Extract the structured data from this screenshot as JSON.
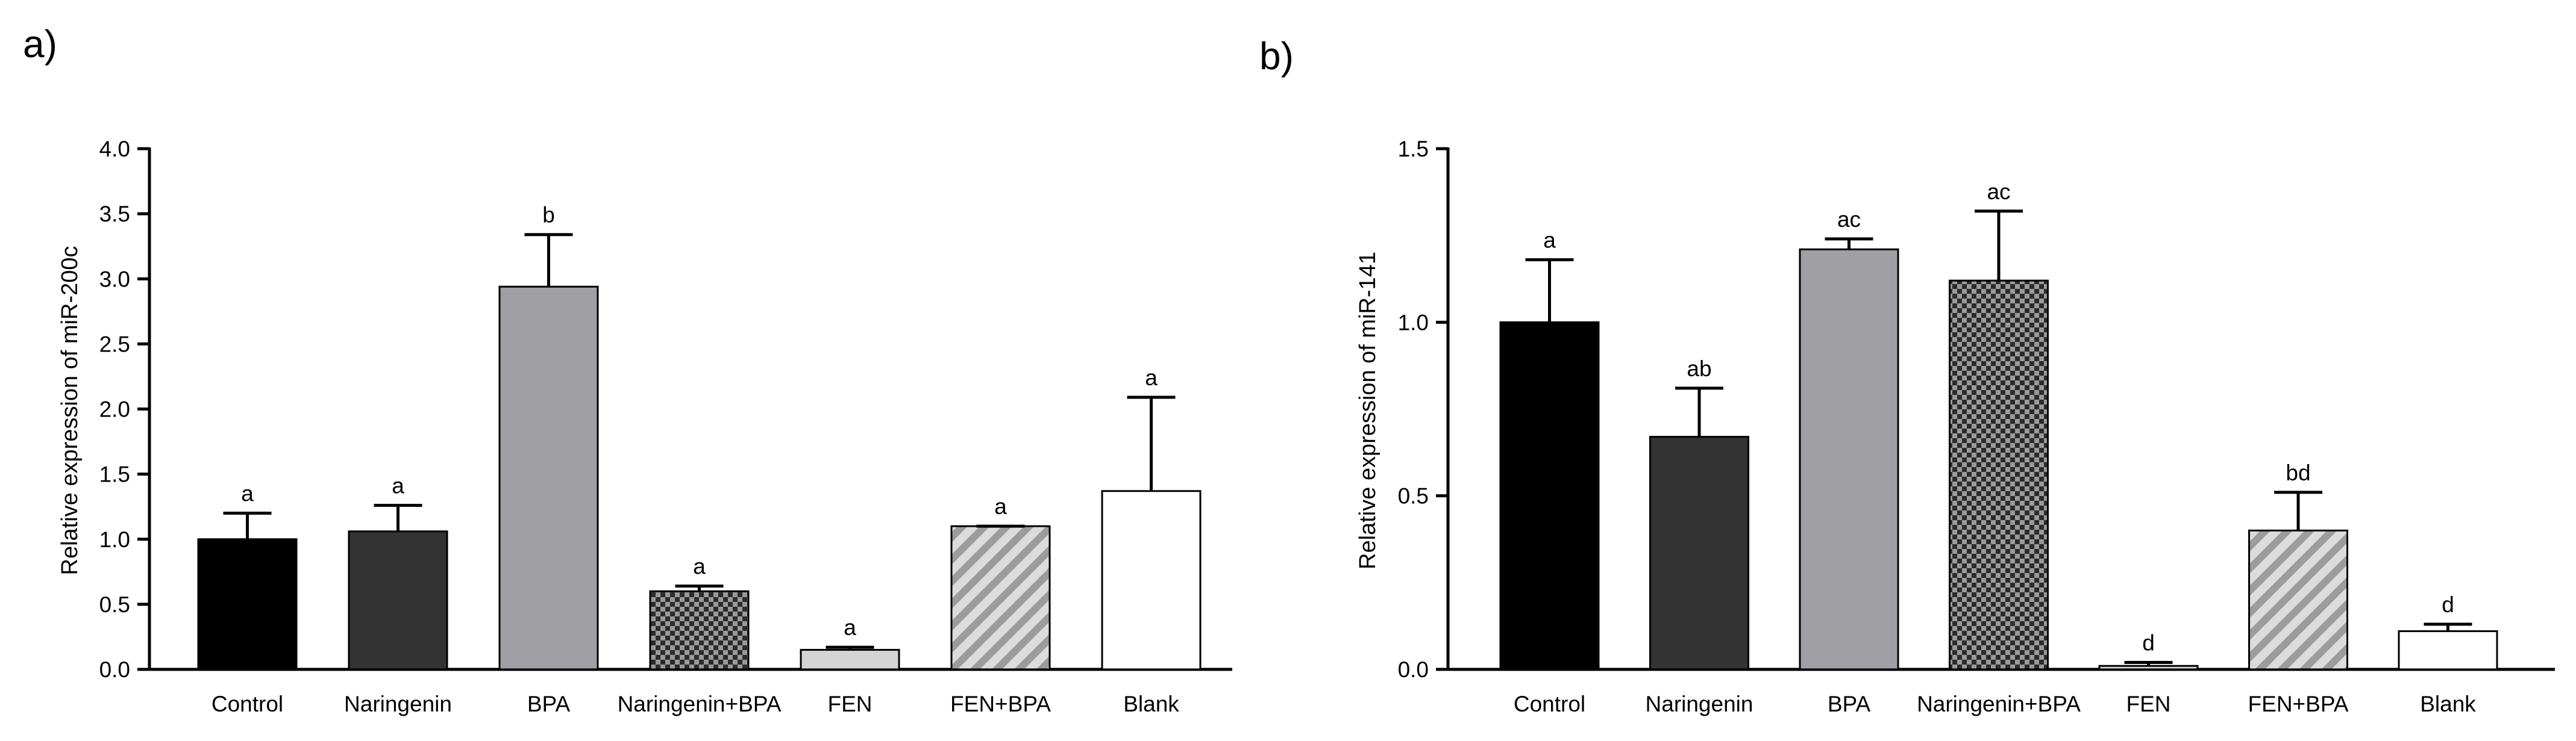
{
  "chart_data": [
    {
      "type": "bar",
      "panel_label": "a)",
      "categories": [
        "Control",
        "Naringenin",
        "BPA",
        "Naringenin+BPA",
        "FEN",
        "FEN+BPA",
        "Blank"
      ],
      "values": [
        1.0,
        1.06,
        2.94,
        0.6,
        0.15,
        1.1,
        1.37
      ],
      "errors": [
        0.2,
        0.2,
        0.4,
        0.04,
        0.02,
        0.0,
        0.72
      ],
      "significance": [
        "a",
        "a",
        "b",
        "a",
        "a",
        "a",
        "a"
      ],
      "fills": [
        "solid-black",
        "solid-dark-gray",
        "solid-gray",
        "checker",
        "solid-light-gray",
        "diagonal-stripes",
        "white"
      ],
      "ylabel": "Relative expression of miR-200c",
      "xlabel": "",
      "ylim": [
        0,
        4.0
      ],
      "yticks": [
        0.0,
        0.5,
        1.0,
        1.5,
        2.0,
        2.5,
        3.0,
        3.5,
        4.0
      ],
      "ytick_labels": [
        "0.0",
        "0.5",
        "1.0",
        "1.5",
        "2.0",
        "2.5",
        "3.0",
        "3.5",
        "4.0"
      ]
    },
    {
      "type": "bar",
      "panel_label": "b)",
      "categories": [
        "Control",
        "Naringenin",
        "BPA",
        "Naringenin+BPA",
        "FEN",
        "FEN+BPA",
        "Blank"
      ],
      "values": [
        1.0,
        0.67,
        1.21,
        1.12,
        0.01,
        0.4,
        0.11
      ],
      "errors": [
        0.18,
        0.14,
        0.03,
        0.2,
        0.01,
        0.11,
        0.02
      ],
      "significance": [
        "a",
        "ab",
        "ac",
        "ac",
        "d",
        "bd",
        "d"
      ],
      "fills": [
        "solid-black",
        "solid-dark-gray",
        "solid-gray",
        "checker",
        "solid-light-gray",
        "diagonal-stripes",
        "white"
      ],
      "ylabel": "Relative expression of miR-141",
      "xlabel": "",
      "ylim": [
        0,
        1.5
      ],
      "yticks": [
        0.0,
        0.5,
        1.0,
        1.5
      ],
      "ytick_labels": [
        "0.0",
        "0.5",
        "1.0",
        "1.5"
      ]
    }
  ],
  "colors": {
    "solid-black": "#000000",
    "solid-dark-gray": "#333333",
    "solid-gray": "#a0a0a4",
    "solid-light-gray": "#d4d4d4",
    "white": "#ffffff",
    "checker-dark": "#2b2b2b",
    "checker-light": "#9a9a9a",
    "stripe-bg": "#dcdcdc",
    "stripe-fg": "#9c9c9c"
  }
}
